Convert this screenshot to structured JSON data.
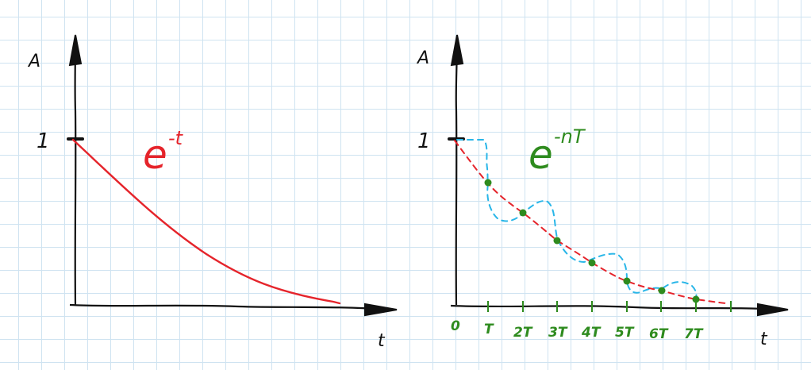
{
  "left_panel": {
    "y_axis_label": "A",
    "x_axis_label": "t",
    "y_tick_label": "1",
    "formula_base": "e",
    "formula_exponent": "-t",
    "colors": {
      "curve": "#e5242b",
      "axes": "#111111"
    }
  },
  "right_panel": {
    "y_axis_label": "A",
    "x_axis_label": "t",
    "y_tick_label": "1",
    "formula_base": "e",
    "formula_exponent": "-nT",
    "x_tick_labels": [
      "0",
      "T",
      "2T",
      "3T",
      "4T",
      "5T",
      "6T",
      "7T"
    ],
    "colors": {
      "samples": "#2e8b1e",
      "dashed_curve": "#e5242b",
      "hold_signal": "#29b6e8",
      "axes": "#111111"
    }
  }
}
